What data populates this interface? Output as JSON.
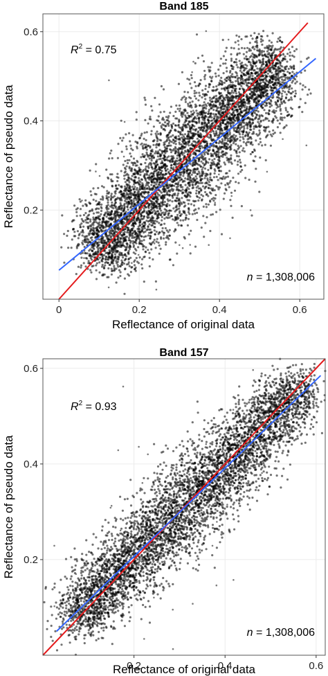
{
  "chart_data": [
    {
      "type": "scatter",
      "title": "Band 185",
      "xlabel": "Reflectance of original data",
      "ylabel": "Reflectance of pseudo data",
      "xlim": [
        -0.04,
        0.66
      ],
      "ylim": [
        0.0,
        0.64
      ],
      "xticks": [
        0,
        0.2,
        0.4,
        0.6
      ],
      "xtick_labels": [
        "0",
        "0.2",
        "0.4",
        "0.6"
      ],
      "yticks": [
        0.2,
        0.4,
        0.6
      ],
      "ytick_labels": [
        "0.2",
        "0.4",
        "0.6"
      ],
      "grid": true,
      "r2_label": "R",
      "r2_sup": "2",
      "r2_value": " = 0.75",
      "n_label": "n",
      "n_value": " = 1,308,006",
      "point_cloud": {
        "count_shown": 1308006,
        "trend_start": [
          0.06,
          0.08
        ],
        "trend_end": [
          0.58,
          0.56
        ],
        "spread_across_trend": 0.06,
        "color": "#000000"
      },
      "reference_line": {
        "name": "1:1 line",
        "from": [
          0.0,
          0.0
        ],
        "to": [
          0.62,
          0.62
        ],
        "color": "#e41a1c"
      },
      "fit_line": {
        "name": "regression",
        "from": [
          0.0,
          0.065
        ],
        "to": [
          0.64,
          0.54
        ],
        "color": "#3366ff"
      }
    },
    {
      "type": "scatter",
      "title": "Band 157",
      "xlabel": "Reflectance of original data",
      "ylabel": "Reflectance of pseudo data",
      "xlim": [
        0.0,
        0.62
      ],
      "ylim": [
        0.0,
        0.62
      ],
      "xticks": [
        0.2,
        0.4,
        0.6
      ],
      "xtick_labels": [
        "0.2",
        "0.4",
        "0.6"
      ],
      "yticks": [
        0.2,
        0.4,
        0.6
      ],
      "ytick_labels": [
        "0.2",
        "0.4",
        "0.6"
      ],
      "grid": true,
      "r2_label": "R",
      "r2_sup": "2",
      "r2_value": " = 0.93",
      "n_label": "n",
      "n_value": " = 1,308,006",
      "point_cloud": {
        "count_shown": 1308006,
        "trend_start": [
          0.04,
          0.05
        ],
        "trend_end": [
          0.6,
          0.59
        ],
        "spread_across_trend": 0.045,
        "color": "#000000"
      },
      "reference_line": {
        "name": "1:1 line",
        "from": [
          0.0,
          0.0
        ],
        "to": [
          0.62,
          0.62
        ],
        "color": "#e41a1c"
      },
      "fit_line": {
        "name": "regression",
        "from": [
          0.03,
          0.05
        ],
        "to": [
          0.61,
          0.585
        ],
        "color": "#3366ff"
      }
    }
  ]
}
